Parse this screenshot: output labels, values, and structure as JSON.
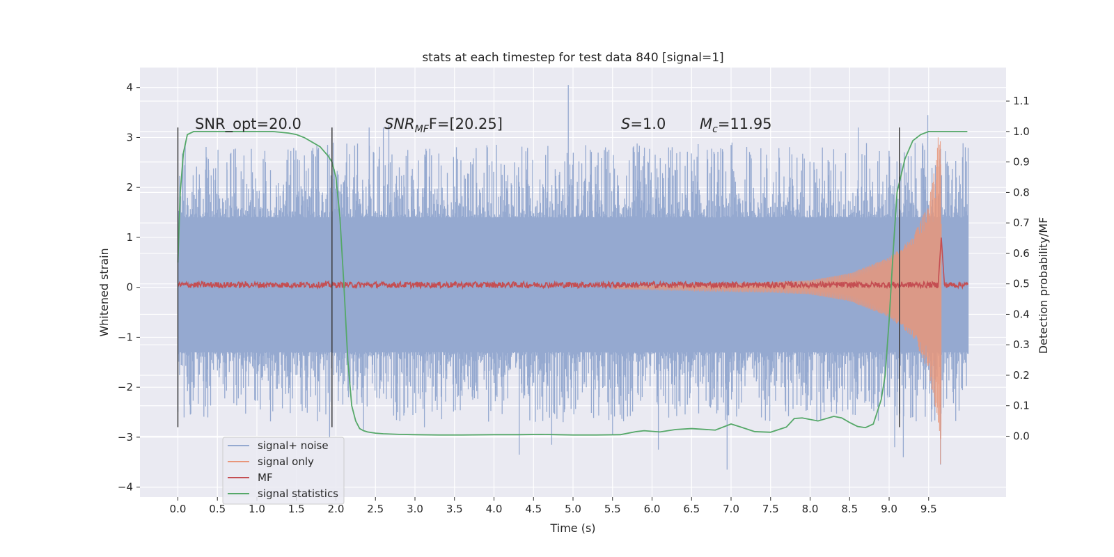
{
  "chart_data": {
    "type": "line",
    "title": "stats at each timestep for test data 840 [signal=1]",
    "xlabel": "Time (s)",
    "ylabel": "Whitened strain",
    "y2label": "Detection probability/MF",
    "xlim": [
      -0.48,
      10.48
    ],
    "ylim": [
      -4.2,
      4.4
    ],
    "y2lim": [
      -0.2,
      1.21
    ],
    "xticks": [
      0.0,
      0.5,
      1.0,
      1.5,
      2.0,
      2.5,
      3.0,
      3.5,
      4.0,
      4.5,
      5.0,
      5.5,
      6.0,
      6.5,
      7.0,
      7.5,
      8.0,
      8.5,
      9.0,
      9.5
    ],
    "xtick_labels": [
      "0.0",
      "0.5",
      "1.0",
      "1.5",
      "2.0",
      "2.5",
      "3.0",
      "3.5",
      "4.0",
      "4.5",
      "5.0",
      "5.5",
      "6.0",
      "6.5",
      "7.0",
      "7.5",
      "8.0",
      "8.5",
      "9.0",
      "9.5"
    ],
    "yticks": [
      -4,
      -3,
      -2,
      -1,
      0,
      1,
      2,
      3,
      4
    ],
    "ytick_labels": [
      "−4",
      "−3",
      "−2",
      "−1",
      "0",
      "1",
      "2",
      "3",
      "4"
    ],
    "y2ticks": [
      0.0,
      0.1,
      0.2,
      0.3,
      0.4,
      0.5,
      0.6,
      0.7,
      0.8,
      0.9,
      1.0,
      1.1
    ],
    "y2tick_labels": [
      "0.0",
      "0.1",
      "0.2",
      "0.3",
      "0.4",
      "0.5",
      "0.6",
      "0.7",
      "0.8",
      "0.9",
      "1.0",
      "1.1"
    ],
    "grid": true,
    "legend_position": "lower-left",
    "annotations": {
      "snr_opt": "SNR_opt=20.0",
      "snr_mf_prefix": "SNR",
      "snr_mf_sub": "MF",
      "snr_mf_suffix": "F=[20.25]",
      "s_var": "S",
      "s_value": "=1.0",
      "mc_var": "M",
      "mc_sub": "c",
      "mc_value": "=11.95"
    },
    "vertical_markers": [
      {
        "x": 0.0,
        "y_bottom": -2.8,
        "y_top": 3.2
      },
      {
        "x": 1.95,
        "y_bottom": -2.8,
        "y_top": 3.2
      },
      {
        "x": 9.13,
        "y_bottom": -2.8,
        "y_top": 3.2
      }
    ],
    "series": [
      {
        "name": "signal+ noise",
        "axis": "left",
        "kind": "noise_band",
        "color": "#95a9d0",
        "x_range": [
          0.0,
          10.0
        ],
        "typical_envelope": [
          -1.7,
          2.0
        ],
        "core_band": [
          -1.3,
          1.4
        ],
        "min": -3.6,
        "max": 4.0,
        "spikes": [
          {
            "x": 0.39,
            "y": 2.35
          },
          {
            "x": 0.62,
            "y": 2.5
          },
          {
            "x": 1.38,
            "y": 2.55
          },
          {
            "x": 2.42,
            "y": 3.2
          },
          {
            "x": 2.6,
            "y": 3.2
          },
          {
            "x": 2.67,
            "y": 3.25
          },
          {
            "x": 4.49,
            "y": 2.55
          },
          {
            "x": 4.94,
            "y": 4.05
          },
          {
            "x": 5.76,
            "y": 2.8
          },
          {
            "x": 6.21,
            "y": 2.8
          },
          {
            "x": 7.0,
            "y": 2.85
          },
          {
            "x": 8.61,
            "y": 3.2
          },
          {
            "x": 9.49,
            "y": 3.45
          },
          {
            "x": 4.32,
            "y": -3.35
          },
          {
            "x": 4.73,
            "y": -3.15
          },
          {
            "x": 6.08,
            "y": -3.25
          },
          {
            "x": 6.95,
            "y": -3.65
          },
          {
            "x": 9.07,
            "y": -3.2
          },
          {
            "x": 9.18,
            "y": -3.4
          },
          {
            "x": 9.65,
            "y": -3.55
          },
          {
            "x": 1.92,
            "y": -3.0
          },
          {
            "x": 2.35,
            "y": -2.85
          },
          {
            "x": 3.12,
            "y": -2.8
          },
          {
            "x": 5.5,
            "y": -2.95
          }
        ]
      },
      {
        "name": "signal only",
        "axis": "left",
        "kind": "chirp",
        "color": "#e8967a",
        "x_range": [
          5.5,
          9.66
        ],
        "amplitude_points": [
          [
            5.5,
            0.03
          ],
          [
            7.5,
            0.1
          ],
          [
            8.0,
            0.14
          ],
          [
            8.5,
            0.28
          ],
          [
            9.0,
            0.6
          ],
          [
            9.3,
            1.0
          ],
          [
            9.5,
            1.7
          ],
          [
            9.6,
            2.6
          ],
          [
            9.66,
            3.8
          ]
        ]
      },
      {
        "name": "MF",
        "axis": "left",
        "kind": "noise_thin",
        "color": "#c44e52",
        "x_range": [
          0.0,
          10.0
        ],
        "level": 0.05,
        "jitter": 0.06,
        "peak": {
          "x": 9.66,
          "y": 1.0
        }
      },
      {
        "name": "signal statistics",
        "axis": "right",
        "kind": "line",
        "color": "#55a868",
        "x": [
          0.0,
          0.03,
          0.07,
          0.12,
          0.2,
          0.3,
          0.5,
          0.8,
          1.0,
          1.2,
          1.4,
          1.5,
          1.6,
          1.7,
          1.8,
          1.9,
          1.95,
          2.0,
          2.05,
          2.1,
          2.15,
          2.2,
          2.25,
          2.3,
          2.35,
          2.4,
          2.5,
          2.6,
          2.8,
          3.0,
          3.3,
          3.6,
          4.0,
          4.3,
          4.6,
          4.8,
          5.0,
          5.3,
          5.6,
          5.8,
          5.9,
          6.1,
          6.3,
          6.5,
          6.8,
          7.0,
          7.1,
          7.3,
          7.5,
          7.7,
          7.8,
          7.9,
          8.1,
          8.3,
          8.4,
          8.5,
          8.6,
          8.7,
          8.8,
          8.9,
          8.95,
          9.0,
          9.05,
          9.1,
          9.2,
          9.3,
          9.4,
          9.5,
          9.7,
          9.99
        ],
        "values": [
          0.57,
          0.8,
          0.93,
          0.99,
          1.0,
          1.0,
          1.0,
          1.0,
          1.0,
          1.0,
          0.995,
          0.99,
          0.98,
          0.965,
          0.95,
          0.92,
          0.9,
          0.85,
          0.72,
          0.5,
          0.25,
          0.1,
          0.05,
          0.025,
          0.018,
          0.014,
          0.01,
          0.008,
          0.006,
          0.005,
          0.004,
          0.004,
          0.005,
          0.005,
          0.006,
          0.005,
          0.004,
          0.004,
          0.005,
          0.015,
          0.018,
          0.014,
          0.022,
          0.025,
          0.02,
          0.04,
          0.032,
          0.015,
          0.013,
          0.03,
          0.058,
          0.06,
          0.05,
          0.065,
          0.06,
          0.045,
          0.032,
          0.028,
          0.04,
          0.12,
          0.2,
          0.38,
          0.6,
          0.8,
          0.91,
          0.97,
          0.99,
          1.0,
          1.0,
          1.0
        ]
      }
    ]
  }
}
